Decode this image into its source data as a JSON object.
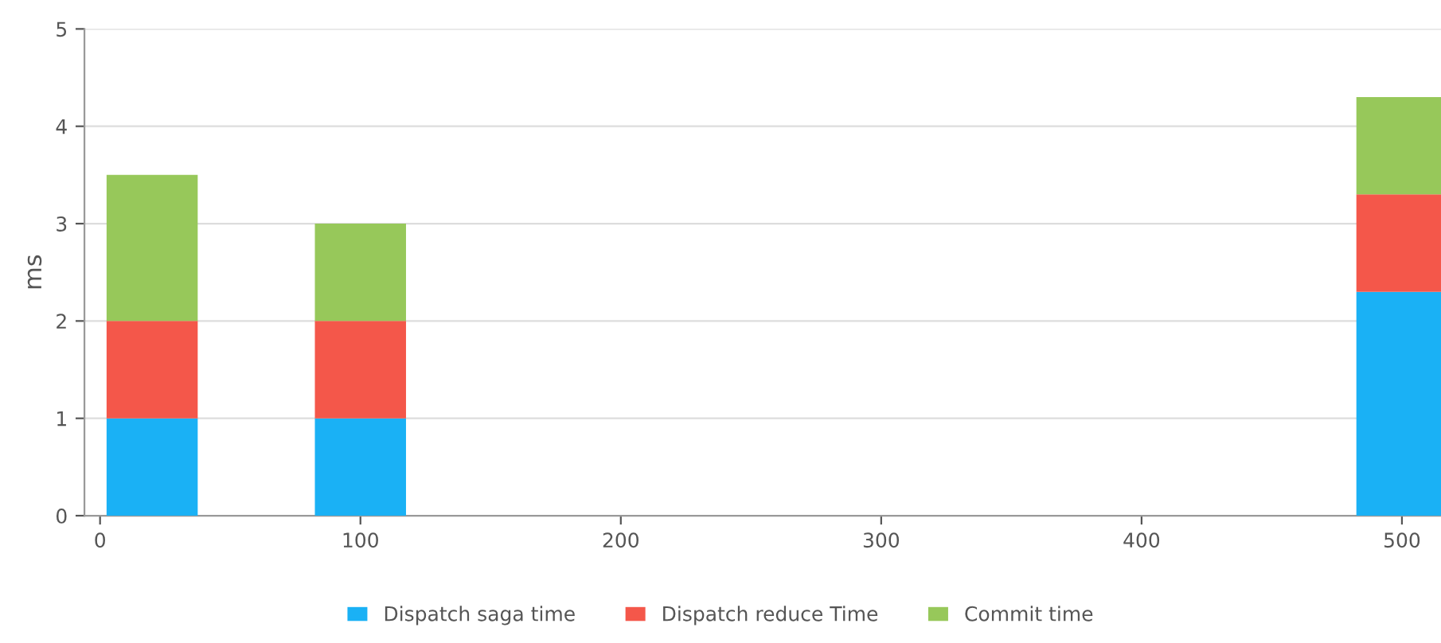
{
  "chart_data": {
    "type": "bar",
    "stacked": true,
    "ylabel": "ms",
    "x": [
      20,
      100,
      500
    ],
    "series": [
      {
        "name": "Dispatch saga time",
        "color": "#1ab1f5",
        "values": [
          1,
          1,
          2.3
        ]
      },
      {
        "name": "Dispatch reduce Time",
        "color": "#f4574a",
        "values": [
          1,
          1,
          1
        ]
      },
      {
        "name": "Commit time",
        "color": "#97c85a",
        "values": [
          1.5,
          1,
          1
        ]
      }
    ],
    "xlim": [
      -6,
      515
    ],
    "xticks": [
      0,
      100,
      200,
      300,
      400,
      500
    ],
    "ylim": [
      0,
      5
    ],
    "yticks": [
      0,
      1,
      2,
      3,
      4,
      5
    ],
    "grid": "y",
    "legend": "bottom"
  }
}
